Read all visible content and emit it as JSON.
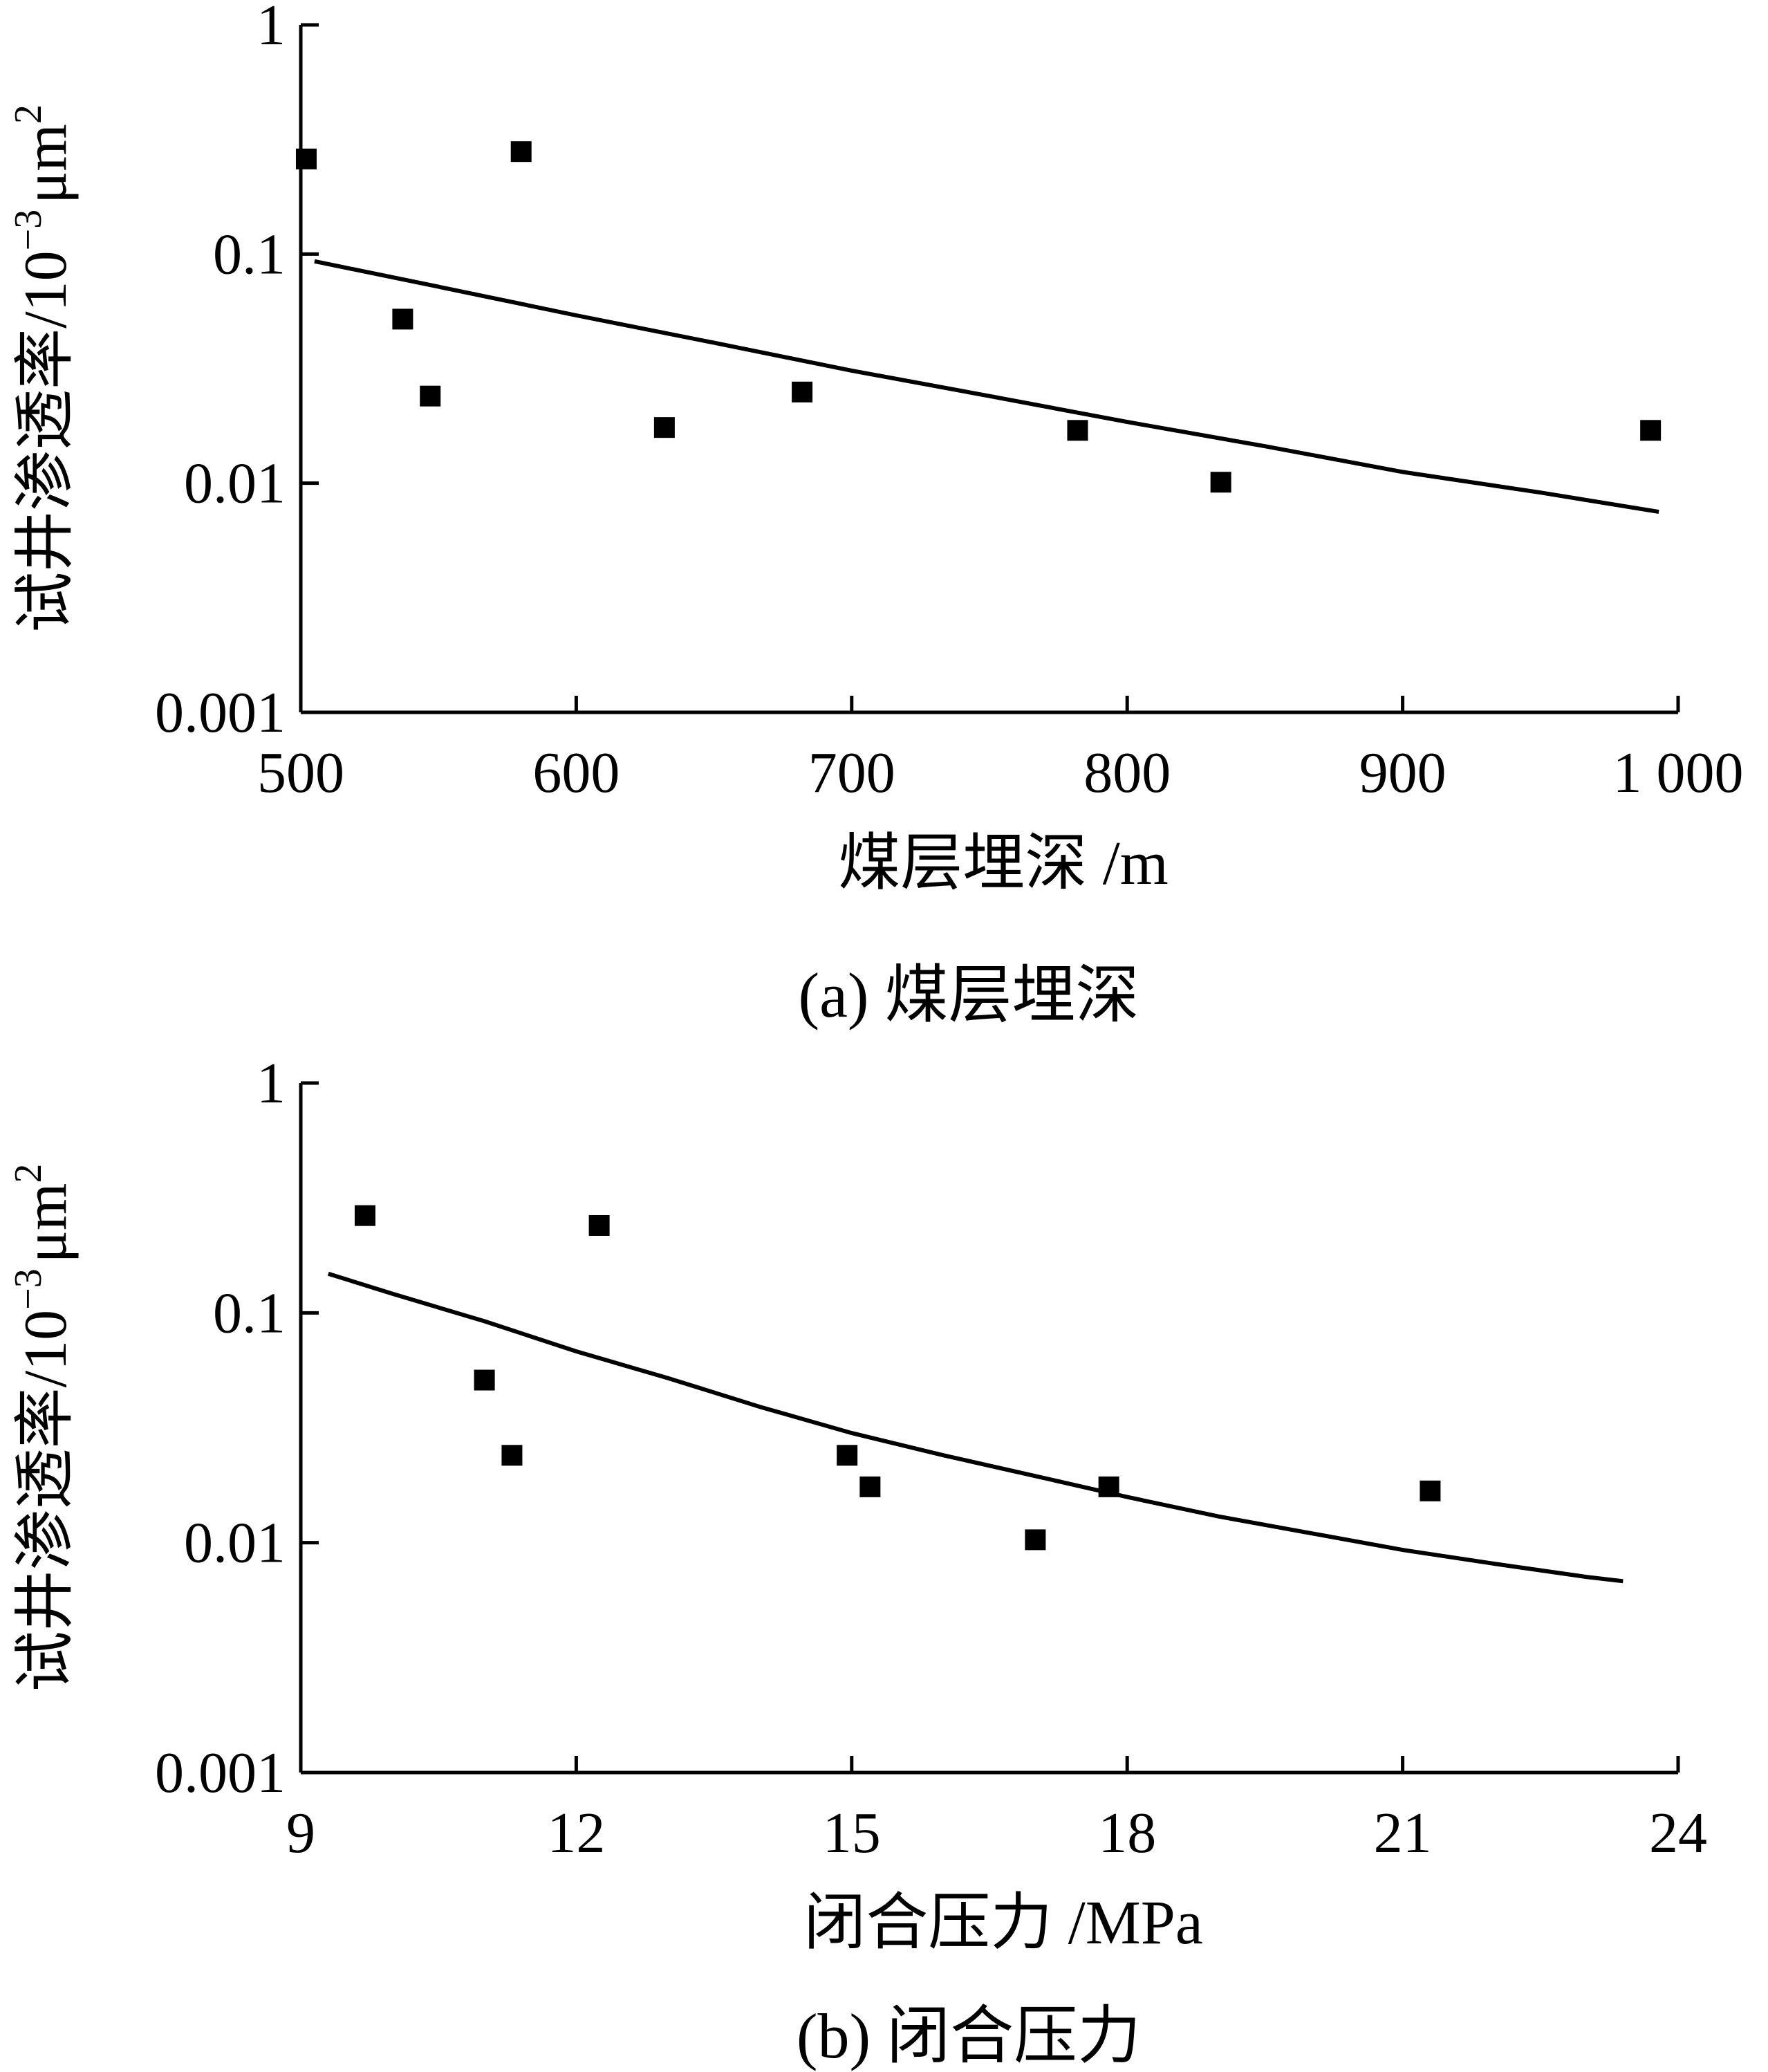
{
  "chart_data": [
    {
      "type": "scatter",
      "title": "",
      "caption": "(a)  煤层埋深",
      "xlabel": "煤层埋深 /m",
      "ylabel_main": "试井渗透率/10",
      "ylabel_exp": "−3",
      "ylabel_unit": "μm",
      "ylabel_unit_exp": "2",
      "x_scale": "linear",
      "y_scale": "log",
      "xlim": [
        500,
        1000
      ],
      "ylim": [
        0.001,
        1
      ],
      "x_ticks": [
        500,
        600,
        700,
        800,
        900,
        1000
      ],
      "x_tick_labels": [
        "500",
        "600",
        "700",
        "800",
        "900",
        "1 000"
      ],
      "y_ticks": [
        0.001,
        0.01,
        0.1,
        1
      ],
      "y_tick_labels": [
        "0.001",
        "0.01",
        "0.1",
        "1"
      ],
      "grid": false,
      "legend": "none",
      "series": [
        {
          "type": "scatter",
          "marker": "square",
          "x": [
            502,
            537,
            547,
            580,
            632,
            682,
            782,
            834,
            990
          ],
          "y": [
            0.26,
            0.052,
            0.024,
            0.28,
            0.0175,
            0.025,
            0.017,
            0.0101,
            0.017
          ]
        },
        {
          "type": "line",
          "x": [
            505,
            550,
            600,
            650,
            700,
            750,
            800,
            850,
            900,
            950,
            993
          ],
          "y": [
            0.093,
            0.072,
            0.054,
            0.041,
            0.031,
            0.024,
            0.0185,
            0.0145,
            0.0112,
            0.0091,
            0.0075
          ]
        }
      ]
    },
    {
      "type": "scatter",
      "title": "",
      "caption": "(b)  闭合压力",
      "xlabel": "闭合压力 /MPa",
      "ylabel_main": "试井渗透率/10",
      "ylabel_exp": "−3",
      "ylabel_unit": "μm",
      "ylabel_unit_exp": "2",
      "x_scale": "linear",
      "y_scale": "log",
      "xlim": [
        9,
        24
      ],
      "ylim": [
        0.001,
        1
      ],
      "x_ticks": [
        9,
        12,
        15,
        18,
        21,
        24
      ],
      "x_tick_labels": [
        "9",
        "12",
        "15",
        "18",
        "21",
        "24"
      ],
      "y_ticks": [
        0.001,
        0.01,
        0.1,
        1
      ],
      "y_tick_labels": [
        "0.001",
        "0.01",
        "0.1",
        "1"
      ],
      "grid": false,
      "legend": "none",
      "series": [
        {
          "type": "scatter",
          "marker": "square",
          "x": [
            9.7,
            11.0,
            11.3,
            12.25,
            14.95,
            15.2,
            17.0,
            17.8,
            21.3
          ],
          "y": [
            0.265,
            0.051,
            0.024,
            0.24,
            0.024,
            0.0175,
            0.0103,
            0.0175,
            0.0168
          ]
        },
        {
          "type": "line",
          "x": [
            9.3,
            10,
            11,
            12,
            13,
            14,
            15,
            16,
            17,
            18,
            19,
            20,
            21,
            22,
            23,
            23.4
          ],
          "y": [
            0.148,
            0.121,
            0.092,
            0.068,
            0.052,
            0.039,
            0.03,
            0.024,
            0.0195,
            0.0158,
            0.013,
            0.011,
            0.0093,
            0.0081,
            0.0071,
            0.0068
          ]
        }
      ]
    }
  ]
}
